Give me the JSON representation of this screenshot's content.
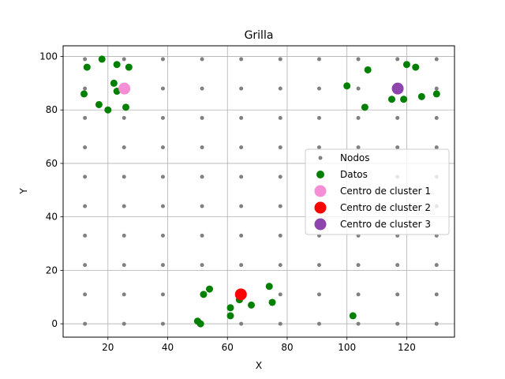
{
  "chart_data": {
    "type": "scatter",
    "title": "Grilla",
    "xlabel": "X",
    "ylabel": "Y",
    "xlim": [
      5,
      136
    ],
    "ylim": [
      -5,
      104
    ],
    "xticks": [
      20,
      40,
      60,
      80,
      100,
      120
    ],
    "yticks": [
      0,
      20,
      40,
      60,
      80,
      100
    ],
    "grid": true,
    "legend_position": "center-right",
    "nodes": {
      "name": "Nodos",
      "color": "#808080",
      "x": [
        12.3,
        25.4,
        38.4,
        51.5,
        64.6,
        77.7,
        90.7,
        103.8,
        116.9,
        130.0
      ],
      "y": [
        0,
        11,
        22,
        33,
        44,
        55,
        66,
        77,
        88,
        99
      ]
    },
    "series": [
      {
        "name": "Datos",
        "color": "#008000",
        "points": [
          [
            12,
            86
          ],
          [
            13,
            96
          ],
          [
            17,
            82
          ],
          [
            18,
            99
          ],
          [
            20,
            80
          ],
          [
            22,
            90
          ],
          [
            23,
            97
          ],
          [
            23,
            87
          ],
          [
            26,
            81
          ],
          [
            27,
            96
          ],
          [
            100,
            89
          ],
          [
            106,
            81
          ],
          [
            107,
            95
          ],
          [
            115,
            84
          ],
          [
            119,
            84
          ],
          [
            120,
            97
          ],
          [
            123,
            96
          ],
          [
            125,
            85
          ],
          [
            130,
            86
          ],
          [
            50,
            1
          ],
          [
            51,
            0
          ],
          [
            52,
            11
          ],
          [
            54,
            13
          ],
          [
            61,
            6
          ],
          [
            61,
            3
          ],
          [
            64,
            9
          ],
          [
            68,
            7
          ],
          [
            74,
            14
          ],
          [
            75,
            8
          ],
          [
            102,
            3
          ]
        ]
      },
      {
        "name": "Centro de cluster 1",
        "color": "#f48fd6",
        "points": [
          [
            25.5,
            88
          ]
        ]
      },
      {
        "name": "Centro de cluster 2",
        "color": "#ff0000",
        "points": [
          [
            64.5,
            11
          ]
        ]
      },
      {
        "name": "Centro de cluster 3",
        "color": "#8e44ad",
        "points": [
          [
            117,
            88
          ]
        ]
      }
    ]
  }
}
